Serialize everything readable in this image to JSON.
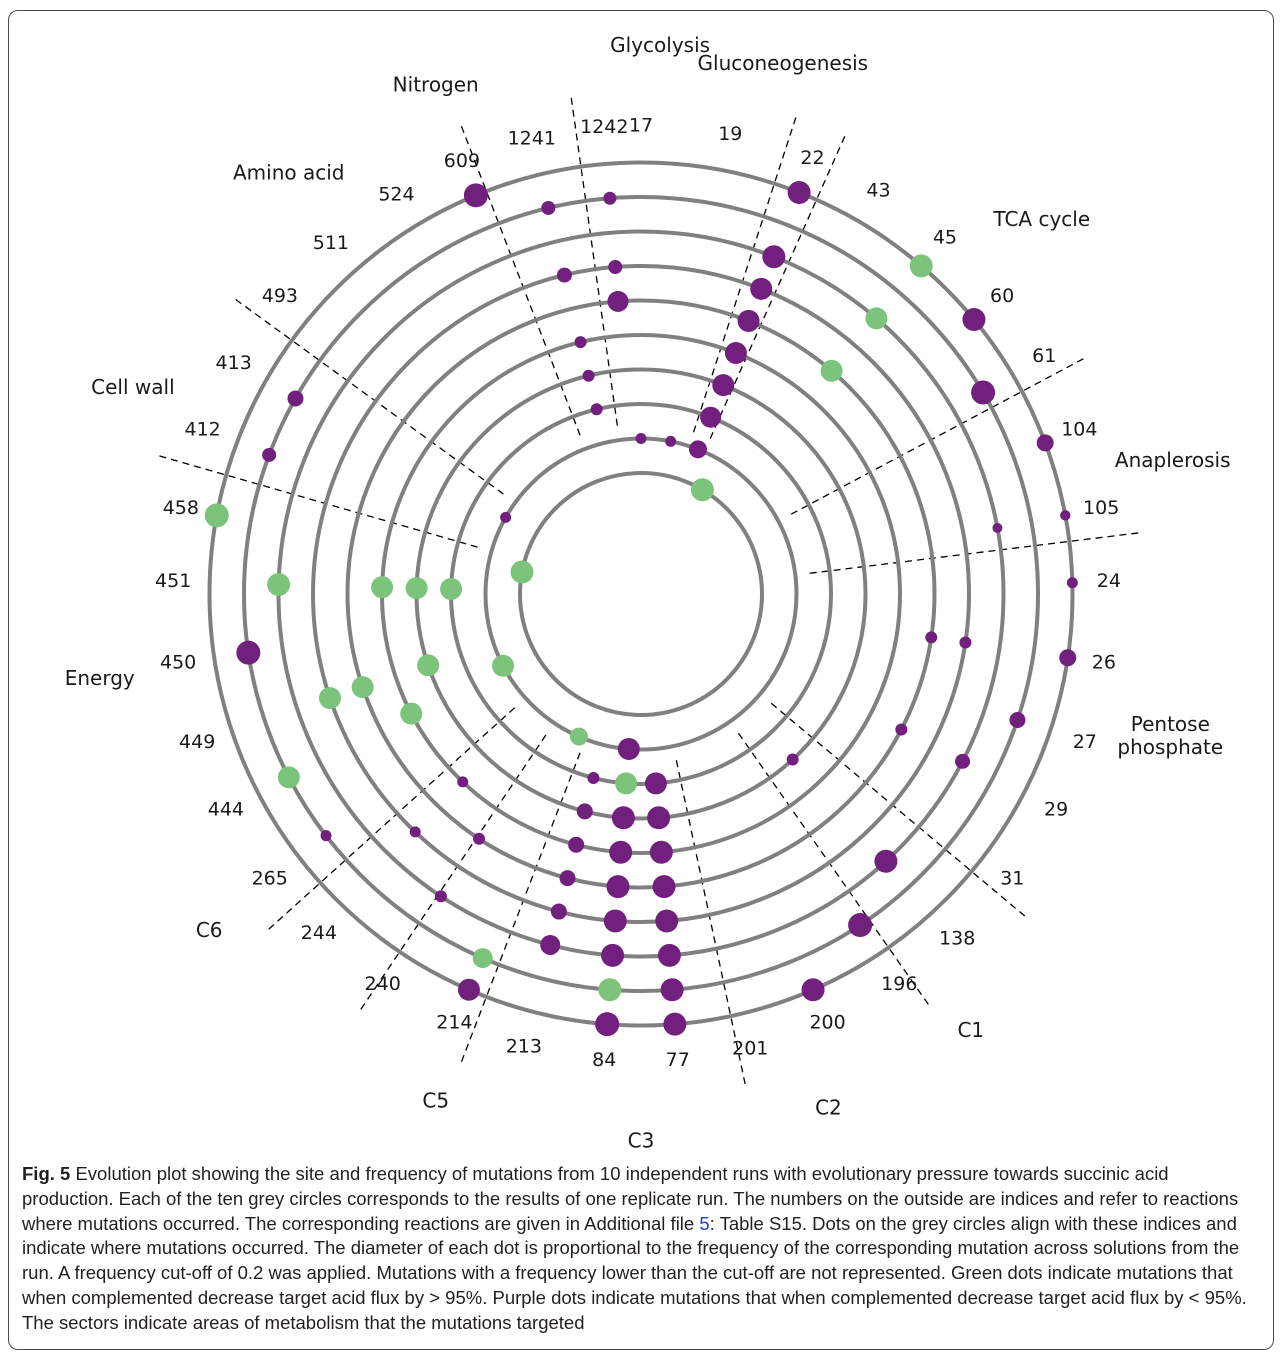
{
  "chart_data": {
    "type": "radial-dot",
    "description_none": "",
    "ring_count": 10,
    "colors": {
      "ring": "#808080",
      "green": "#7cc47c",
      "purple": "#71207d",
      "divider": "#000000"
    },
    "indices": [
      {
        "label": "17",
        "angle": 0
      },
      {
        "label": "19",
        "angle": 11
      },
      {
        "label": "22",
        "angle": 21.5
      },
      {
        "label": "43",
        "angle": 30.5
      },
      {
        "label": "45",
        "angle": 40.5
      },
      {
        "label": "60",
        "angle": 50.5
      },
      {
        "label": "61",
        "angle": 59.5
      },
      {
        "label": "104",
        "angle": 69.5
      },
      {
        "label": "105",
        "angle": 79.5
      },
      {
        "label": "24",
        "angle": 88.5
      },
      {
        "label": "26",
        "angle": 98.5
      },
      {
        "label": "27",
        "angle": 108.5
      },
      {
        "label": "29",
        "angle": 117.5
      },
      {
        "label": "31",
        "angle": 127.5
      },
      {
        "label": "138",
        "angle": 137.5
      },
      {
        "label": "196",
        "angle": 146.5
      },
      {
        "label": "200",
        "angle": 156.5
      },
      {
        "label": "201",
        "angle": 166.5
      },
      {
        "label": "77",
        "angle": 175.5
      },
      {
        "label": "84",
        "angle": 184.5
      },
      {
        "label": "213",
        "angle": 194.5
      },
      {
        "label": "214",
        "angle": 203.5
      },
      {
        "label": "240",
        "angle": 213.5
      },
      {
        "label": "244",
        "angle": 223.5
      },
      {
        "label": "265",
        "angle": 232.5
      },
      {
        "label": "444",
        "angle": 242.5
      },
      {
        "label": "449",
        "angle": 251.5
      },
      {
        "label": "450",
        "angle": 261.5
      },
      {
        "label": "451",
        "angle": 271.5
      },
      {
        "label": "458",
        "angle": 280.5
      },
      {
        "label": "412",
        "angle": 290.5
      },
      {
        "label": "413",
        "angle": 299.5
      },
      {
        "label": "493",
        "angle": 309.5
      },
      {
        "label": "511",
        "angle": 318.5
      },
      {
        "label": "524",
        "angle": 328.5
      },
      {
        "label": "609",
        "angle": 337.5
      },
      {
        "label": "1241",
        "angle": 346.5
      },
      {
        "label": "1242",
        "angle": 355.5
      }
    ],
    "sectors": [
      {
        "label": "Glycolysis",
        "angle": 2
      },
      {
        "label": "Gluconeogenesis",
        "angle": 15
      },
      {
        "label": "TCA cycle",
        "angle": 47
      },
      {
        "label": "Anaplerosis",
        "angle": 76
      },
      {
        "label": "Pentose phosphate",
        "angle": 105
      },
      {
        "label": "C1",
        "angle": 143
      },
      {
        "label": "C2",
        "angle": 160
      },
      {
        "label": "C3",
        "angle": 180
      },
      {
        "label": "C5",
        "angle": 202
      },
      {
        "label": "C6",
        "angle": 232
      },
      {
        "label": "Energy",
        "angle": 261
      },
      {
        "label": "Cell wall",
        "angle": 292
      },
      {
        "label": "Amino acid",
        "angle": 320
      },
      {
        "label": "Nitrogen",
        "angle": 338
      }
    ],
    "divider_angles": [
      352,
      18,
      24,
      62,
      83,
      130,
      145,
      168,
      201,
      214,
      228,
      286,
      306,
      339
    ],
    "mutations": [
      {
        "ring": 10,
        "index": "22",
        "freq": 0.85,
        "color": "purple"
      },
      {
        "ring": 10,
        "index": "45",
        "freq": 0.85,
        "color": "green"
      },
      {
        "ring": 10,
        "index": "60",
        "freq": 0.85,
        "color": "purple"
      },
      {
        "ring": 10,
        "index": "104",
        "freq": 0.55,
        "color": "purple"
      },
      {
        "ring": 10,
        "index": "105",
        "freq": 0.22,
        "color": "purple"
      },
      {
        "ring": 10,
        "index": "24",
        "freq": 0.25,
        "color": "purple"
      },
      {
        "ring": 10,
        "index": "26",
        "freq": 0.55,
        "color": "purple"
      },
      {
        "ring": 10,
        "index": "200",
        "freq": 0.85,
        "color": "purple"
      },
      {
        "ring": 10,
        "index": "77",
        "freq": 0.85,
        "color": "purple"
      },
      {
        "ring": 10,
        "index": "84",
        "freq": 0.9,
        "color": "purple"
      },
      {
        "ring": 10,
        "index": "214",
        "freq": 0.8,
        "color": "purple"
      },
      {
        "ring": 10,
        "index": "458",
        "freq": 0.9,
        "color": "green"
      },
      {
        "ring": 10,
        "index": "609",
        "freq": 0.9,
        "color": "purple"
      },
      {
        "ring": 9,
        "index": "61",
        "freq": 0.9,
        "color": "purple"
      },
      {
        "ring": 9,
        "index": "27",
        "freq": 0.5,
        "color": "purple"
      },
      {
        "ring": 9,
        "index": "196",
        "freq": 0.9,
        "color": "purple"
      },
      {
        "ring": 9,
        "index": "77",
        "freq": 0.85,
        "color": "purple"
      },
      {
        "ring": 9,
        "index": "84",
        "freq": 0.85,
        "color": "green"
      },
      {
        "ring": 9,
        "index": "214",
        "freq": 0.7,
        "color": "green"
      },
      {
        "ring": 9,
        "index": "444",
        "freq": 0.8,
        "color": "green"
      },
      {
        "ring": 9,
        "index": "265",
        "freq": 0.25,
        "color": "purple"
      },
      {
        "ring": 9,
        "index": "450",
        "freq": 0.9,
        "color": "purple"
      },
      {
        "ring": 9,
        "index": "413",
        "freq": 0.5,
        "color": "purple"
      },
      {
        "ring": 9,
        "index": "412",
        "freq": 0.4,
        "color": "purple"
      },
      {
        "ring": 9,
        "index": "1241",
        "freq": 0.4,
        "color": "purple"
      },
      {
        "ring": 9,
        "index": "1242",
        "freq": 0.35,
        "color": "purple"
      },
      {
        "ring": 8,
        "index": "22",
        "freq": 0.85,
        "color": "purple"
      },
      {
        "ring": 8,
        "index": "45",
        "freq": 0.8,
        "color": "green"
      },
      {
        "ring": 8,
        "index": "105",
        "freq": 0.2,
        "color": "purple"
      },
      {
        "ring": 8,
        "index": "29",
        "freq": 0.45,
        "color": "purple"
      },
      {
        "ring": 8,
        "index": "138",
        "freq": 0.85,
        "color": "purple"
      },
      {
        "ring": 8,
        "index": "77",
        "freq": 0.85,
        "color": "purple"
      },
      {
        "ring": 8,
        "index": "84",
        "freq": 0.85,
        "color": "purple"
      },
      {
        "ring": 8,
        "index": "213",
        "freq": 0.7,
        "color": "purple"
      },
      {
        "ring": 8,
        "index": "451",
        "freq": 0.85,
        "color": "green"
      },
      {
        "ring": 8,
        "index": "240",
        "freq": 0.3,
        "color": "purple"
      },
      {
        "ring": 7,
        "index": "22",
        "freq": 0.8,
        "color": "purple"
      },
      {
        "ring": 7,
        "index": "26",
        "freq": 0.3,
        "color": "purple"
      },
      {
        "ring": 7,
        "index": "77",
        "freq": 0.85,
        "color": "purple"
      },
      {
        "ring": 7,
        "index": "84",
        "freq": 0.85,
        "color": "purple"
      },
      {
        "ring": 7,
        "index": "213",
        "freq": 0.5,
        "color": "purple"
      },
      {
        "ring": 7,
        "index": "449",
        "freq": 0.8,
        "color": "green"
      },
      {
        "ring": 7,
        "index": "244",
        "freq": 0.25,
        "color": "purple"
      },
      {
        "ring": 7,
        "index": "1241",
        "freq": 0.45,
        "color": "purple"
      },
      {
        "ring": 7,
        "index": "1242",
        "freq": 0.4,
        "color": "purple"
      },
      {
        "ring": 6,
        "index": "22",
        "freq": 0.8,
        "color": "purple"
      },
      {
        "ring": 6,
        "index": "45",
        "freq": 0.8,
        "color": "green"
      },
      {
        "ring": 6,
        "index": "26",
        "freq": 0.3,
        "color": "purple"
      },
      {
        "ring": 6,
        "index": "29",
        "freq": 0.3,
        "color": "purple"
      },
      {
        "ring": 6,
        "index": "77",
        "freq": 0.85,
        "color": "purple"
      },
      {
        "ring": 6,
        "index": "84",
        "freq": 0.85,
        "color": "purple"
      },
      {
        "ring": 6,
        "index": "213",
        "freq": 0.5,
        "color": "purple"
      },
      {
        "ring": 6,
        "index": "449",
        "freq": 0.8,
        "color": "green"
      },
      {
        "ring": 6,
        "index": "240",
        "freq": 0.3,
        "color": "purple"
      },
      {
        "ring": 6,
        "index": "1242",
        "freq": 0.75,
        "color": "purple"
      },
      {
        "ring": 5,
        "index": "22",
        "freq": 0.8,
        "color": "purple"
      },
      {
        "ring": 5,
        "index": "77",
        "freq": 0.85,
        "color": "purple"
      },
      {
        "ring": 5,
        "index": "84",
        "freq": 0.85,
        "color": "purple"
      },
      {
        "ring": 5,
        "index": "213",
        "freq": 0.5,
        "color": "purple"
      },
      {
        "ring": 5,
        "index": "444",
        "freq": 0.8,
        "color": "green"
      },
      {
        "ring": 5,
        "index": "244",
        "freq": 0.25,
        "color": "purple"
      },
      {
        "ring": 5,
        "index": "451",
        "freq": 0.8,
        "color": "green"
      },
      {
        "ring": 5,
        "index": "1241",
        "freq": 0.3,
        "color": "purple"
      },
      {
        "ring": 4,
        "index": "22",
        "freq": 0.8,
        "color": "purple"
      },
      {
        "ring": 4,
        "index": "138",
        "freq": 0.3,
        "color": "purple"
      },
      {
        "ring": 4,
        "index": "77",
        "freq": 0.85,
        "color": "purple"
      },
      {
        "ring": 4,
        "index": "84",
        "freq": 0.85,
        "color": "purple"
      },
      {
        "ring": 4,
        "index": "213",
        "freq": 0.5,
        "color": "purple"
      },
      {
        "ring": 4,
        "index": "449",
        "freq": 0.8,
        "color": "green"
      },
      {
        "ring": 4,
        "index": "451",
        "freq": 0.8,
        "color": "green"
      },
      {
        "ring": 4,
        "index": "1241",
        "freq": 0.3,
        "color": "purple"
      },
      {
        "ring": 3,
        "index": "22",
        "freq": 0.75,
        "color": "purple"
      },
      {
        "ring": 3,
        "index": "77",
        "freq": 0.8,
        "color": "purple"
      },
      {
        "ring": 3,
        "index": "84",
        "freq": 0.8,
        "color": "green"
      },
      {
        "ring": 3,
        "index": "213",
        "freq": 0.3,
        "color": "purple"
      },
      {
        "ring": 3,
        "index": "451",
        "freq": 0.8,
        "color": "green"
      },
      {
        "ring": 3,
        "index": "1241",
        "freq": 0.3,
        "color": "purple"
      },
      {
        "ring": 2,
        "index": "22",
        "freq": 0.6,
        "color": "purple"
      },
      {
        "ring": 2,
        "index": "84",
        "freq": 0.8,
        "color": "purple"
      },
      {
        "ring": 2,
        "index": "214",
        "freq": 0.6,
        "color": "green"
      },
      {
        "ring": 2,
        "index": "444",
        "freq": 0.8,
        "color": "green"
      },
      {
        "ring": 2,
        "index": "17",
        "freq": 0.25,
        "color": "purple"
      },
      {
        "ring": 2,
        "index": "19",
        "freq": 0.25,
        "color": "purple"
      },
      {
        "ring": 2,
        "index": "413",
        "freq": 0.25,
        "color": "purple"
      },
      {
        "ring": 1,
        "index": "43",
        "freq": 0.85,
        "color": "green"
      },
      {
        "ring": 1,
        "index": "458",
        "freq": 0.85,
        "color": "green"
      }
    ]
  },
  "caption": {
    "figure_number": "Fig. 5",
    "text_before_link": "Evolution plot showing the site and frequency of mutations from 10 independent runs with evolutionary pressure towards succinic acid production. Each of the ten grey circles corresponds to the results of one replicate run. The numbers on the outside are indices and refer to reactions where mutations occurred. The corresponding reactions are given in Additional file ",
    "link_text": "5",
    "text_after_link": ": Table S15. Dots on the grey circles align with these indices and indicate where mutations occurred. The diameter of each dot is proportional to the frequency of the corresponding mutation across solutions from the run. A frequency cut-off of 0.2 was applied. Mutations with a frequency lower than the cut-off are not represented. Green dots indicate mutations that when complemented decrease target acid flux by > 95%. Purple dots indicate mutations that when complemented decrease target acid flux by < 95%. The sectors indicate areas of metabolism that the mutations targeted"
  }
}
